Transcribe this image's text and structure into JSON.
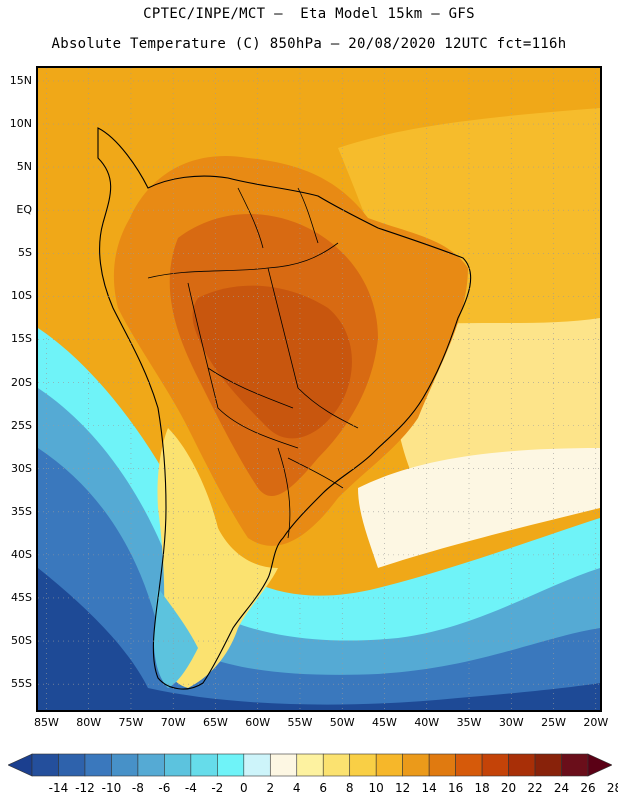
{
  "header": {
    "line1": "CPTEC/INPE/MCT –  Eta Model 15km – GFS",
    "line2": "Absolute Temperature (C) 850hPa – 20/08/2020 12UTC fct=116h"
  },
  "map": {
    "region": "South America",
    "lat_ticks": [
      "15N",
      "10N",
      "5N",
      "EQ",
      "5S",
      "10S",
      "15S",
      "20S",
      "25S",
      "30S",
      "35S",
      "40S",
      "45S",
      "50S",
      "55S"
    ],
    "lat_values": [
      15,
      10,
      5,
      0,
      -5,
      -10,
      -15,
      -20,
      -25,
      -30,
      -35,
      -40,
      -45,
      -50,
      -55
    ],
    "lon_ticks": [
      "85W",
      "80W",
      "75W",
      "70W",
      "65W",
      "60W",
      "55W",
      "50W",
      "45W",
      "40W",
      "35W",
      "30W",
      "25W",
      "20W"
    ],
    "lon_values": [
      -85,
      -80,
      -75,
      -70,
      -65,
      -60,
      -55,
      -50,
      -45,
      -40,
      -35,
      -30,
      -25,
      -20
    ],
    "lat_range": [
      -58,
      16.5
    ],
    "lon_range": [
      -86,
      -19.5
    ],
    "grid": "dotted"
  },
  "colorbar": {
    "labels": [
      "-14",
      "-12",
      "-10",
      "-8",
      "-6",
      "-4",
      "-2",
      "0",
      "2",
      "4",
      "6",
      "8",
      "10",
      "12",
      "14",
      "16",
      "18",
      "20",
      "22",
      "24",
      "26",
      "28"
    ],
    "colors": [
      "#1b3f8f",
      "#244f9c",
      "#2e62ac",
      "#3a78bd",
      "#4791c8",
      "#55aad4",
      "#5cc3de",
      "#66dcea",
      "#6ff3f8",
      "#cdf4fa",
      "#fdf7e3",
      "#fdf2a0",
      "#fbe270",
      "#f9cf45",
      "#f6b72a",
      "#eb9a1a",
      "#e07a10",
      "#d65a0a",
      "#c44308",
      "#a82f07",
      "#88220a",
      "#6a0e1a",
      "#5a0015"
    ]
  },
  "regions": {
    "sea_tropical": "#f0a818",
    "sea_subtropical": "#f6bc2c",
    "land_hot": "#d86a12",
    "land_core": "#c8560e",
    "mild": "#fde48a",
    "cool_band": "#6ff3f8",
    "cold_band": "#3a90c8",
    "very_cold": "#1e4a96"
  }
}
